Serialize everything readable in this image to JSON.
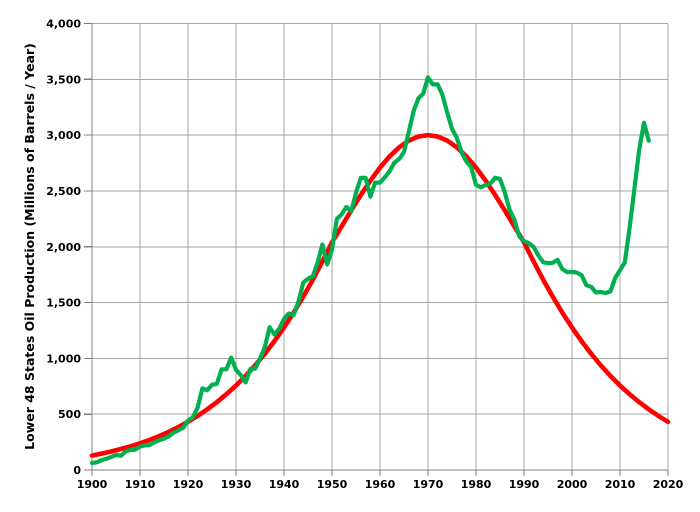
{
  "page": {
    "background": "#FFFFFF"
  },
  "chart_data": {
    "type": "line",
    "title": "",
    "xlabel": "",
    "ylabel": "Lower 48 States Oil Production (Millions of Barrels / Year)",
    "xlim": [
      1900,
      2020
    ],
    "ylim": [
      0,
      4000
    ],
    "grid": true,
    "legend": "none",
    "x_ticks": [
      1900,
      1910,
      1920,
      1930,
      1940,
      1950,
      1960,
      1970,
      1980,
      1990,
      2000,
      2010,
      2020
    ],
    "x_tick_labels": [
      "1900",
      "1910",
      "1920",
      "1930",
      "1940",
      "1950",
      "1960",
      "1970",
      "1980",
      "1990",
      "2000",
      "2010",
      "2020"
    ],
    "y_ticks": [
      0,
      500,
      1000,
      1500,
      2000,
      2500,
      3000,
      3500,
      4000
    ],
    "y_tick_labels": [
      "0",
      "500",
      "1,000",
      "1,500",
      "2,000",
      "2,500",
      "3,000",
      "3,500",
      "4,000"
    ],
    "colors": {
      "actual_series_green": "#00B050",
      "model_curve_red": "#FF0000",
      "gridline": "#A6A6A6",
      "axis": "#808080",
      "text": "#000000",
      "background": "#FFFFFF"
    },
    "series": [
      {
        "id": "hubbert-model-curve",
        "color": "#FF0000",
        "stroke_width": 4.6,
        "start_year": 1900,
        "year_step": 2,
        "peak_year": 1970,
        "peak_value": 3000,
        "values": [
          129,
          147,
          166,
          188,
          212,
          239,
          270,
          304,
          342,
          385,
          432,
          485,
          543,
          607,
          679,
          757,
          843,
          938,
          1041,
          1154,
          1277,
          1409,
          1552,
          1705,
          1868,
          2040,
          2182,
          2326,
          2464,
          2593,
          2709,
          2809,
          2891,
          2951,
          2988,
          3000,
          2988,
          2951,
          2891,
          2809,
          2709,
          2593,
          2464,
          2326,
          2182,
          2040,
          1868,
          1705,
          1552,
          1409,
          1277,
          1154,
          1041,
          938,
          843,
          757,
          679,
          607,
          543,
          485,
          432
        ]
      },
      {
        "id": "actual-oil-production",
        "color": "#00B050",
        "stroke_width": 4.2,
        "start_year": 1900,
        "year_step": 1,
        "peak_year": 1970,
        "peak_value": 3517,
        "values": [
          63,
          69,
          89,
          100,
          117,
          135,
          126,
          166,
          179,
          183,
          210,
          220,
          223,
          248,
          266,
          281,
          301,
          335,
          356,
          378,
          443,
          472,
          558,
          732,
          714,
          764,
          771,
          901,
          902,
          1007,
          898,
          851,
          785,
          906,
          908,
          997,
          1100,
          1279,
          1214,
          1265,
          1353,
          1402,
          1387,
          1506,
          1678,
          1714,
          1734,
          1857,
          2020,
          1842,
          1974,
          2248,
          2290,
          2357,
          2315,
          2484,
          2617,
          2617,
          2449,
          2575,
          2575,
          2622,
          2676,
          2753,
          2787,
          2849,
          3028,
          3216,
          3329,
          3372,
          3517,
          3454,
          3455,
          3361,
          3203,
          3057,
          2976,
          2847,
          2764,
          2712,
          2555,
          2533,
          2553,
          2566,
          2619,
          2608,
          2487,
          2331,
          2241,
          2094,
          2051,
          2032,
          1998,
          1922,
          1862,
          1853,
          1856,
          1882,
          1800,
          1772,
          1775,
          1768,
          1745,
          1655,
          1640,
          1590,
          1595,
          1585,
          1600,
          1720,
          1790,
          1860,
          2170,
          2520,
          2870,
          3110,
          2950
        ]
      }
    ]
  }
}
